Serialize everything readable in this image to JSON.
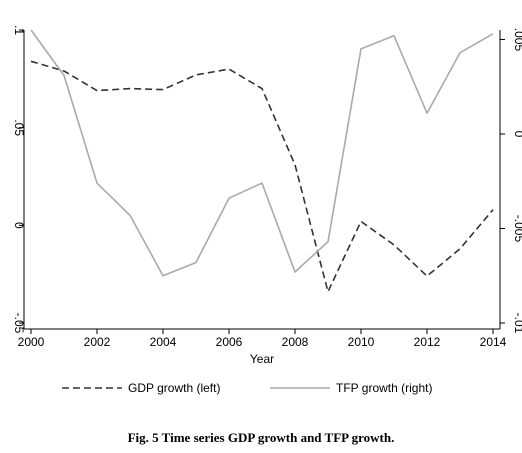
{
  "figure": {
    "caption": "Fig. 5 Time series GDP growth and TFP growth."
  },
  "chart_data": {
    "type": "line",
    "xlabel": "Year",
    "x": [
      2000,
      2001,
      2002,
      2003,
      2004,
      2005,
      2006,
      2007,
      2008,
      2009,
      2010,
      2011,
      2012,
      2013,
      2014
    ],
    "xticks": [
      "2000",
      "2002",
      "2004",
      "2006",
      "2008",
      "2010",
      "2012",
      "2014"
    ],
    "xlim": [
      2000,
      2014
    ],
    "y_left": {
      "lim": [
        -0.05,
        0.1
      ],
      "ticks": [
        -0.05,
        0,
        0.05,
        0.1
      ],
      "tick_labels": [
        "-.05",
        "0",
        ".05",
        ".1"
      ]
    },
    "y_right": {
      "lim": [
        -0.01,
        0.0055
      ],
      "ticks": [
        -0.01,
        -0.005,
        0,
        0.005
      ],
      "tick_labels": [
        "-.01",
        "-.005",
        "0",
        ".005"
      ]
    },
    "series": [
      {
        "name": "GDP growth (left)",
        "axis": "left",
        "style": "dashed",
        "color": "#333333",
        "values": [
          0.084,
          0.079,
          0.069,
          0.07,
          0.0695,
          0.077,
          0.08,
          0.07,
          0.031,
          -0.034,
          0.002,
          -0.01,
          -0.026,
          -0.012,
          0.008
        ]
      },
      {
        "name": "TFP growth (right)",
        "axis": "right",
        "style": "solid",
        "color": "#aaaaaa",
        "values": [
          0.0055,
          0.0031,
          -0.0026,
          -0.0043,
          -0.0075,
          -0.0068,
          -0.0034,
          -0.0026,
          -0.0073,
          -0.0057,
          0.0045,
          0.0052,
          0.0011,
          0.0043,
          0.0053
        ]
      }
    ],
    "legend": {
      "position": "bottom"
    },
    "grid": false
  }
}
